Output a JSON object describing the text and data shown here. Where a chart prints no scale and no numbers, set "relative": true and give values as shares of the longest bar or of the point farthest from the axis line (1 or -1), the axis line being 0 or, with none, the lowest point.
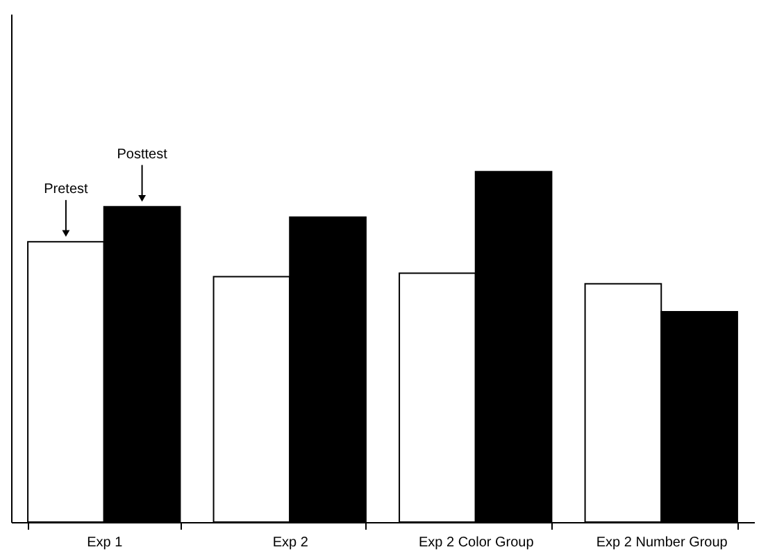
{
  "chart_data": {
    "type": "bar",
    "relative": true,
    "categories": [
      "Exp 1",
      "Exp 2",
      "Exp 2 Color Group",
      "Exp 2 Number Group"
    ],
    "series": [
      {
        "name": "Pretest",
        "color": "#ffffff",
        "values": [
          0.8,
          0.7,
          0.71,
          0.68
        ]
      },
      {
        "name": "Posttest",
        "color": "#000000",
        "values": [
          0.9,
          0.87,
          1,
          0.6
        ]
      }
    ]
  }
}
